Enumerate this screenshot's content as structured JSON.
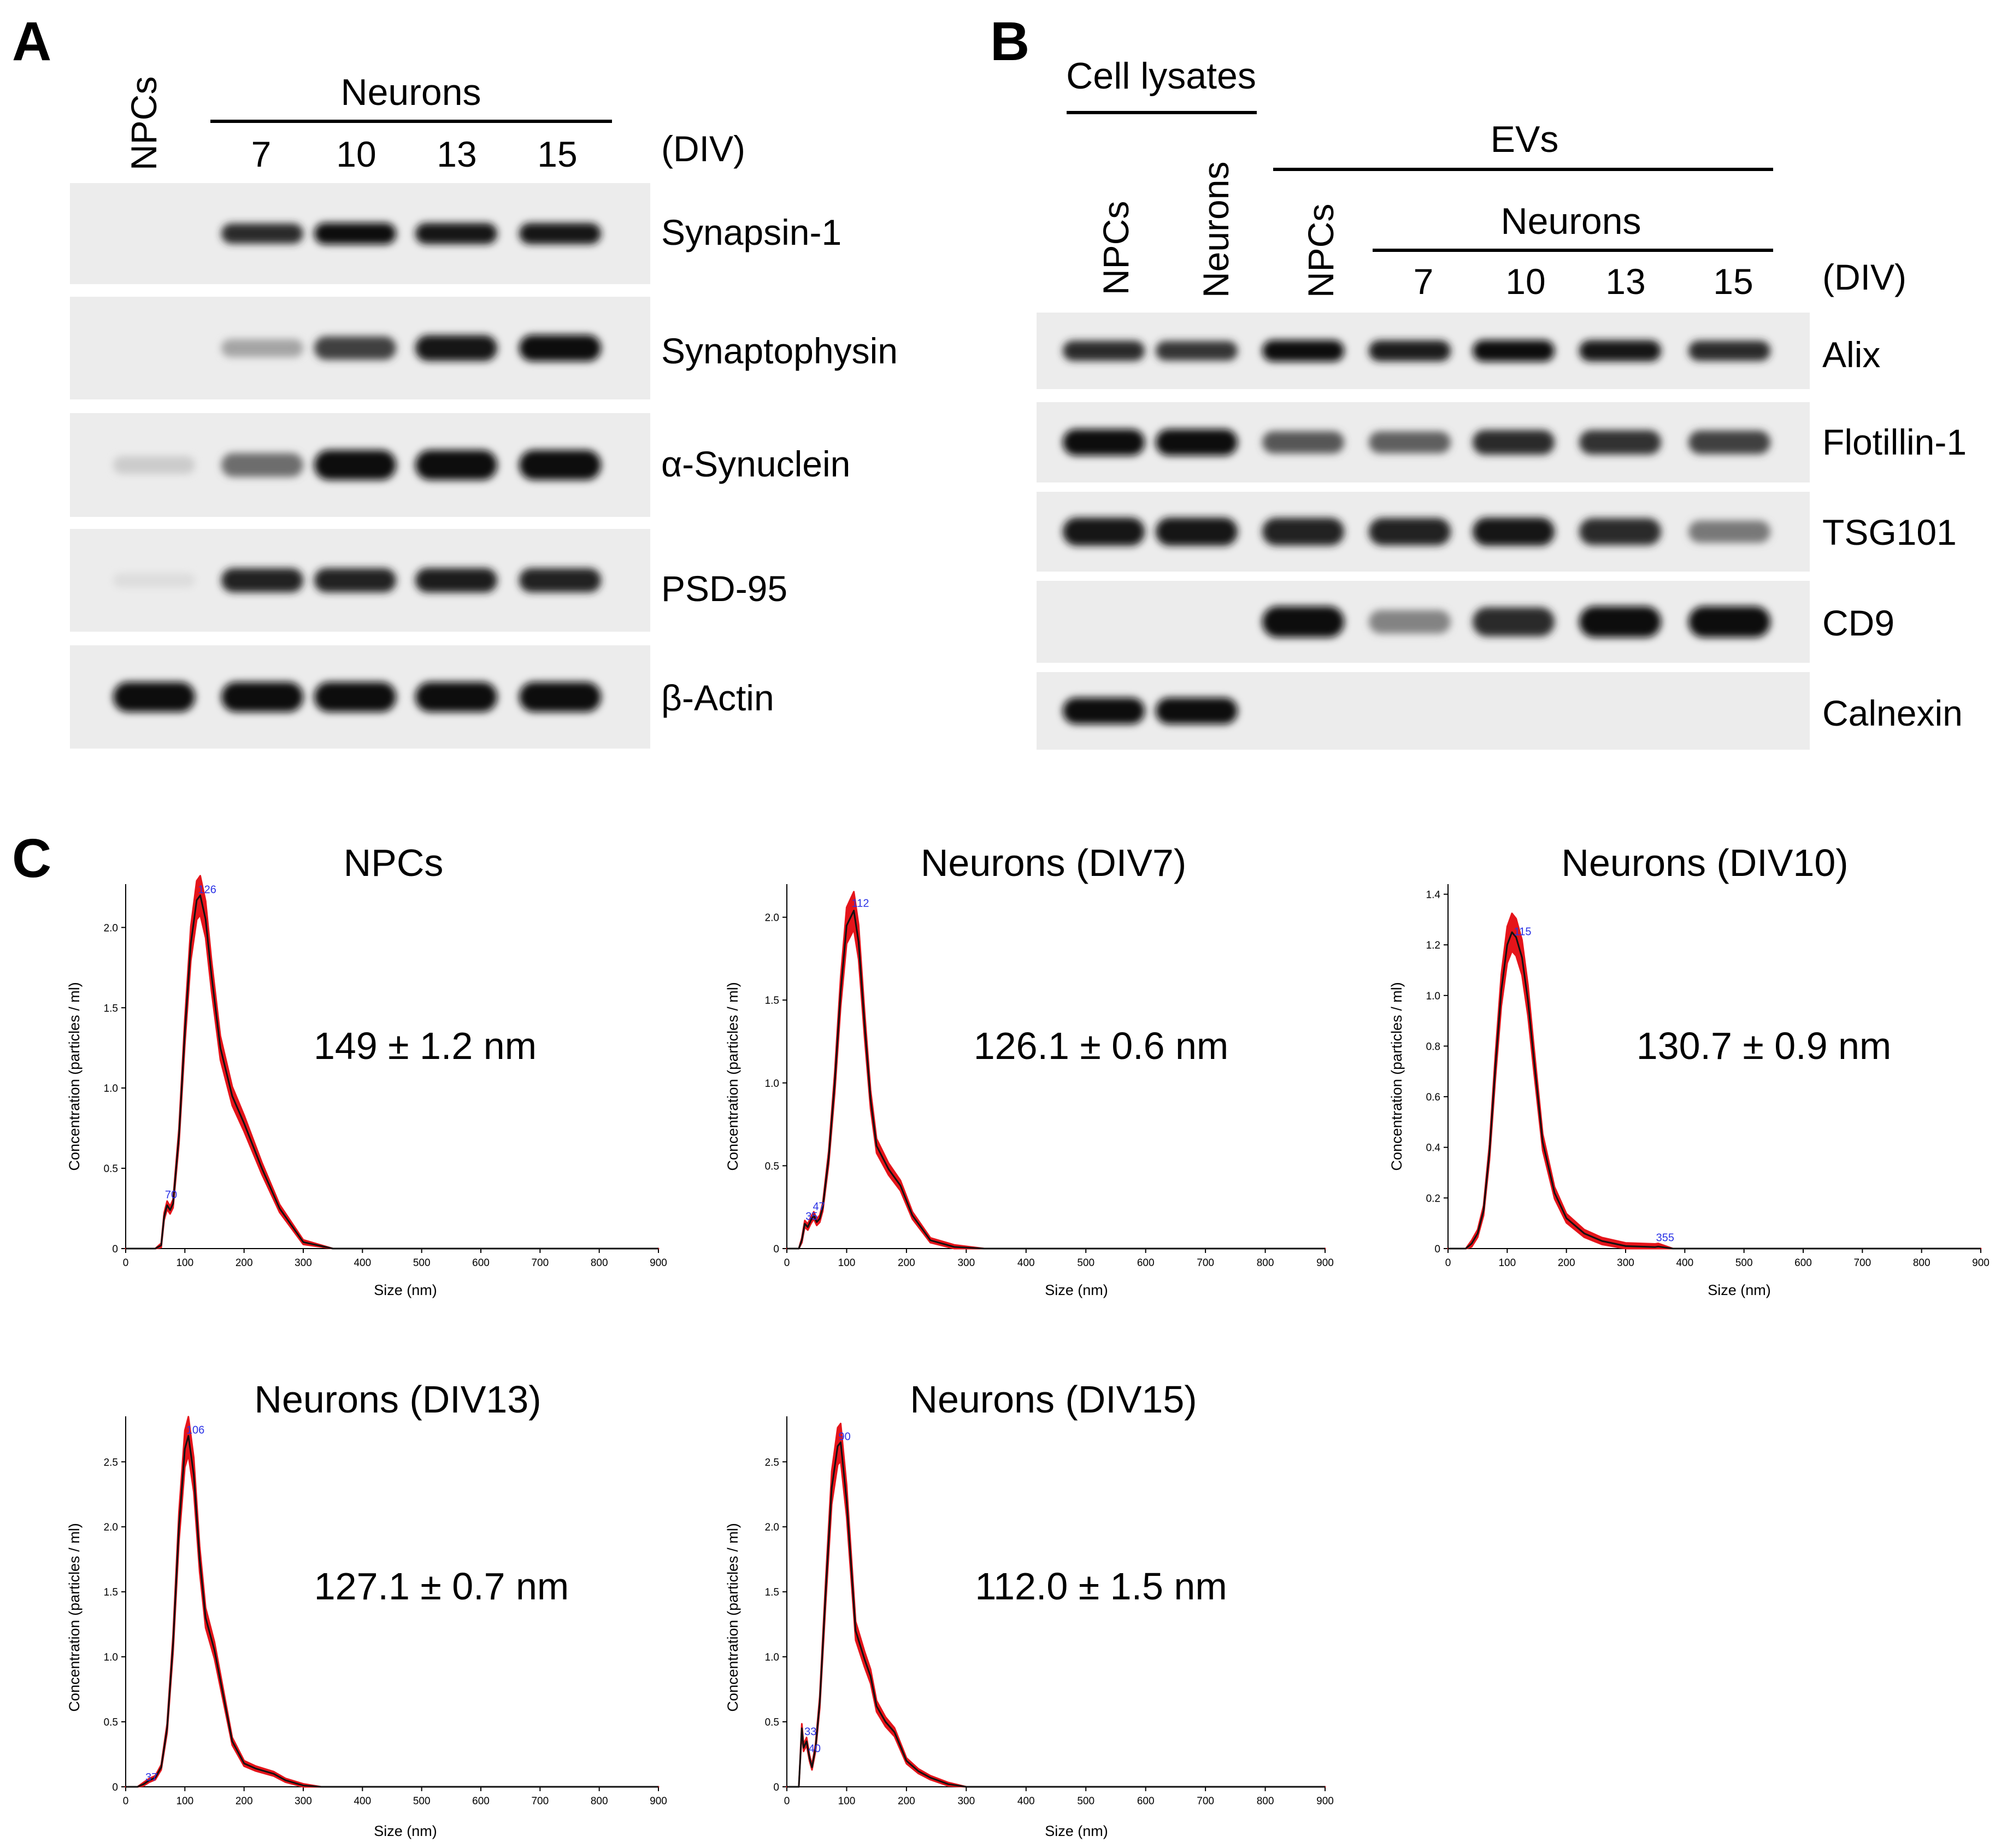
{
  "panels": {
    "a": "A",
    "b": "B",
    "c": "C"
  },
  "panel_a": {
    "npcs_label": "NPCs",
    "neurons_label": "Neurons",
    "div_label": "(DIV)",
    "div_days": [
      "7",
      "10",
      "13",
      "15"
    ],
    "proteins": [
      "Synapsin-1",
      "Synaptophysin",
      "α-Synuclein",
      "PSD-95",
      "β-Actin"
    ],
    "band_intensity": [
      [
        0,
        0.85,
        1,
        0.95,
        0.95
      ],
      [
        0,
        0.3,
        0.75,
        0.95,
        1
      ],
      [
        0.12,
        0.55,
        1,
        1,
        1
      ],
      [
        0.04,
        0.9,
        0.9,
        0.92,
        0.9
      ],
      [
        1,
        1,
        1,
        1,
        1
      ]
    ]
  },
  "panel_b": {
    "cell_lysates_label": "Cell lysates",
    "evs_label": "EVs",
    "neurons_label": "Neurons",
    "lysate_lanes": [
      "NPCs",
      "Neurons"
    ],
    "ev_npcs_label": "NPCs",
    "div_label": "(DIV)",
    "div_days": [
      "7",
      "10",
      "13",
      "15"
    ],
    "proteins": [
      "Alix",
      "Flotillin-1",
      "TSG101",
      "CD9",
      "Calnexin"
    ],
    "band_intensity": [
      [
        0.85,
        0.8,
        1,
        0.92,
        1,
        0.95,
        0.85
      ],
      [
        1,
        1,
        0.65,
        0.62,
        0.85,
        0.82,
        0.75
      ],
      [
        0.95,
        0.95,
        0.9,
        0.88,
        0.95,
        0.85,
        0.5
      ],
      [
        0,
        0,
        1,
        0.45,
        0.85,
        1,
        1
      ],
      [
        1,
        1,
        0,
        0,
        0,
        0,
        0
      ]
    ]
  },
  "panel_c": {
    "x_axis_label": "Size (nm)",
    "y_axis_label": "Concentration (particles / ml)",
    "x_ticks": [
      "0",
      "100",
      "200",
      "300",
      "400",
      "500",
      "600",
      "700",
      "800",
      "900"
    ]
  },
  "chart_data": [
    {
      "type": "line",
      "title": "NPCs",
      "mean_label": "149 ± 1.2 nm",
      "xlabel": "Size (nm)",
      "ylabel": "Concentration (particles / ml)",
      "xlim": [
        0,
        900
      ],
      "ylim": [
        0,
        2.27
      ],
      "y_ticks": [
        "0",
        "0.5",
        "1.0",
        "1.5",
        "2.0"
      ],
      "peak_labels": [
        {
          "x": 126,
          "y": 2.2,
          "text": "126"
        },
        {
          "x": 70,
          "y": 0.3,
          "text": "70"
        }
      ],
      "x": [
        0,
        50,
        60,
        65,
        70,
        75,
        80,
        90,
        100,
        110,
        120,
        126,
        135,
        145,
        160,
        180,
        200,
        230,
        260,
        300,
        350,
        400,
        900
      ],
      "y": [
        0,
        0,
        0.02,
        0.2,
        0.27,
        0.24,
        0.28,
        0.7,
        1.35,
        1.9,
        2.17,
        2.2,
        2.05,
        1.7,
        1.25,
        0.95,
        0.78,
        0.5,
        0.25,
        0.04,
        0,
        0,
        0
      ]
    },
    {
      "type": "line",
      "title": "Neurons (DIV7)",
      "mean_label": "126.1 ± 0.6 nm",
      "xlabel": "Size (nm)",
      "ylabel": "Concentration (particles / ml)",
      "xlim": [
        0,
        900
      ],
      "ylim": [
        0,
        2.2
      ],
      "y_ticks": [
        "0",
        "0.5",
        "1.0",
        "1.5",
        "2.0"
      ],
      "peak_labels": [
        {
          "x": 112,
          "y": 2.05,
          "text": "112"
        },
        {
          "x": 47,
          "y": 0.22,
          "text": "47"
        },
        {
          "x": 35,
          "y": 0.16,
          "text": "35"
        }
      ],
      "x": [
        0,
        20,
        25,
        30,
        35,
        40,
        45,
        50,
        55,
        60,
        70,
        80,
        90,
        100,
        112,
        120,
        130,
        140,
        150,
        170,
        190,
        210,
        240,
        280,
        330,
        900
      ],
      "y": [
        0,
        0,
        0.05,
        0.15,
        0.13,
        0.17,
        0.2,
        0.16,
        0.18,
        0.25,
        0.55,
        1.0,
        1.55,
        1.95,
        2.04,
        1.85,
        1.35,
        0.9,
        0.62,
        0.48,
        0.38,
        0.2,
        0.05,
        0.01,
        0,
        0
      ]
    },
    {
      "type": "line",
      "title": "Neurons (DIV10)",
      "mean_label": "130.7 ± 0.9 nm",
      "xlabel": "Size (nm)",
      "ylabel": "Concentration (particles / ml)",
      "xlim": [
        0,
        900
      ],
      "ylim": [
        0,
        1.44
      ],
      "y_ticks": [
        "0",
        "0.2",
        "0.4",
        "0.6",
        "0.8",
        "1.0",
        "1.2",
        "1.4"
      ],
      "peak_labels": [
        {
          "x": 115,
          "y": 1.23,
          "text": "115"
        },
        {
          "x": 355,
          "y": 0.02,
          "text": "355"
        }
      ],
      "x": [
        0,
        30,
        40,
        50,
        60,
        70,
        80,
        90,
        100,
        108,
        115,
        125,
        135,
        145,
        160,
        180,
        200,
        230,
        260,
        300,
        350,
        355,
        380,
        900
      ],
      "y": [
        0,
        0,
        0.02,
        0.06,
        0.15,
        0.38,
        0.72,
        1.02,
        1.2,
        1.25,
        1.23,
        1.15,
        0.98,
        0.75,
        0.42,
        0.22,
        0.12,
        0.06,
        0.03,
        0.01,
        0.006,
        0.008,
        0,
        0
      ]
    },
    {
      "type": "line",
      "title": "Neurons (DIV13)",
      "mean_label": "127.1 ± 0.7 nm",
      "xlabel": "Size (nm)",
      "ylabel": "Concentration (particles / ml)",
      "xlim": [
        0,
        900
      ],
      "ylim": [
        0,
        2.85
      ],
      "y_ticks": [
        "0",
        "0.5",
        "1.0",
        "1.5",
        "2.0",
        "2.5"
      ],
      "peak_labels": [
        {
          "x": 106,
          "y": 2.7,
          "text": "106"
        },
        {
          "x": 37,
          "y": 0.03,
          "text": "37"
        }
      ],
      "x": [
        0,
        20,
        30,
        40,
        50,
        60,
        70,
        80,
        90,
        100,
        106,
        115,
        125,
        135,
        150,
        165,
        180,
        200,
        220,
        250,
        270,
        300,
        330,
        900
      ],
      "y": [
        0,
        0,
        0.02,
        0.05,
        0.07,
        0.15,
        0.45,
        1.1,
        2.0,
        2.6,
        2.7,
        2.4,
        1.75,
        1.3,
        1.05,
        0.7,
        0.35,
        0.18,
        0.14,
        0.1,
        0.05,
        0.01,
        0,
        0
      ]
    },
    {
      "type": "line",
      "title": "Neurons (DIV15)",
      "mean_label": "112.0 ± 1.5 nm",
      "xlabel": "Size (nm)",
      "ylabel": "Concentration (particles / ml)",
      "xlim": [
        0,
        900
      ],
      "ylim": [
        0,
        2.85
      ],
      "y_ticks": [
        "0",
        "0.5",
        "1.0",
        "1.5",
        "2.0",
        "2.5"
      ],
      "peak_labels": [
        {
          "x": 90,
          "y": 2.65,
          "text": "90"
        },
        {
          "x": 33,
          "y": 0.38,
          "text": "33"
        },
        {
          "x": 40,
          "y": 0.25,
          "text": "40"
        }
      ],
      "x": [
        0,
        20,
        25,
        28,
        33,
        38,
        42,
        48,
        55,
        65,
        75,
        85,
        90,
        100,
        115,
        130,
        140,
        150,
        165,
        180,
        200,
        220,
        240,
        270,
        300,
        900
      ],
      "y": [
        0,
        0,
        0.45,
        0.3,
        0.35,
        0.22,
        0.15,
        0.3,
        0.65,
        1.5,
        2.3,
        2.62,
        2.65,
        2.2,
        1.2,
        0.98,
        0.85,
        0.62,
        0.5,
        0.42,
        0.2,
        0.12,
        0.07,
        0.02,
        0,
        0
      ]
    }
  ]
}
